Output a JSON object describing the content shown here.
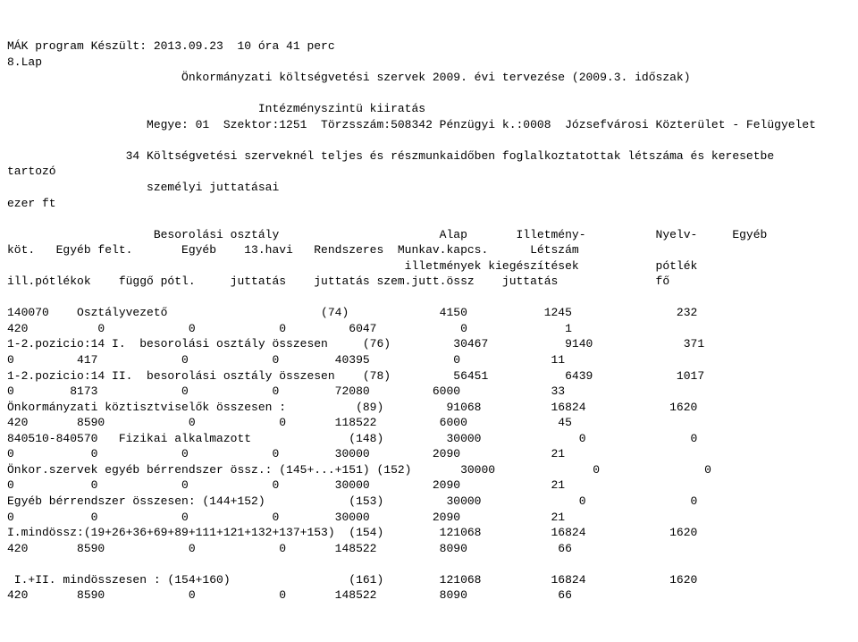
{
  "doc": {
    "l1": "MÁK program Készült: 2013.09.23  10 óra 41 perc",
    "l2": "8.Lap",
    "l3": "                         Önkormányzati költségvetési szervek 2009. évi tervezése (2009.3. időszak)",
    "l4": "",
    "l5": "                                    Intézményszintü kiiratás",
    "l6": "                    Megye: 01  Szektor:1251  Törzsszám:508342 Pénzügyi k.:0008  Józsefvárosi Közterület - Felügyelet",
    "l7": "",
    "l8": "                 34 Költségvetési szerveknél teljes és részmunkaidőben foglalkoztatottak létszáma és keresetbe",
    "l9": "tartozó",
    "l10": "                    személyi juttatásai",
    "l11": "ezer ft",
    "l12": "",
    "l13": "                     Besorolási osztály                       Alap       Illetmény-          Nyelv-     Egyéb",
    "l14": "köt.   Egyéb felt.       Egyéb    13.havi   Rendszeres  Munkav.kapcs.      Létszám",
    "l15": "                                                         illetmények kiegészítések           pótlék",
    "l16": "ill.pótlékok    függő pótl.     juttatás    juttatás szem.jutt.össz    juttatás              fő",
    "l17": "",
    "l18": "140070    Osztályvezető                      (74)             4150           1245               232",
    "l19": "420          0            0            0         6047            0              1",
    "l20": "1-2.pozicio:14 I.  besorolási osztály összesen     (76)         30467           9140             371",
    "l21": "0         417            0            0        40395            0             11",
    "l22": "1-2.pozicio:14 II.  besorolási osztály összesen    (78)         56451           6439            1017",
    "l23": "0        8173            0            0        72080         6000             33",
    "l24": "Önkormányzati köztisztviselők összesen :          (89)         91068          16824            1620",
    "l25": "420       8590            0            0       118522         6000             45",
    "l26": "840510-840570   Fizikai alkalmazott              (148)         30000              0               0",
    "l27": "0           0            0            0        30000         2090             21",
    "l28": "Önkor.szervek egyéb bérrendszer össz.: (145+...+151) (152)       30000              0               0",
    "l29": "0           0            0            0        30000         2090             21",
    "l30": "Egyéb bérrendszer összesen: (144+152)            (153)         30000              0               0",
    "l31": "0           0            0            0        30000         2090             21",
    "l32": "I.mindössz:(19+26+36+69+89+111+121+132+137+153)  (154)        121068          16824            1620",
    "l33": "420       8590            0            0       148522         8090             66",
    "l34": "",
    "l35": " I.+II. mindösszesen : (154+160)                 (161)        121068          16824            1620",
    "l36": "420       8590            0            0       148522         8090             66"
  }
}
